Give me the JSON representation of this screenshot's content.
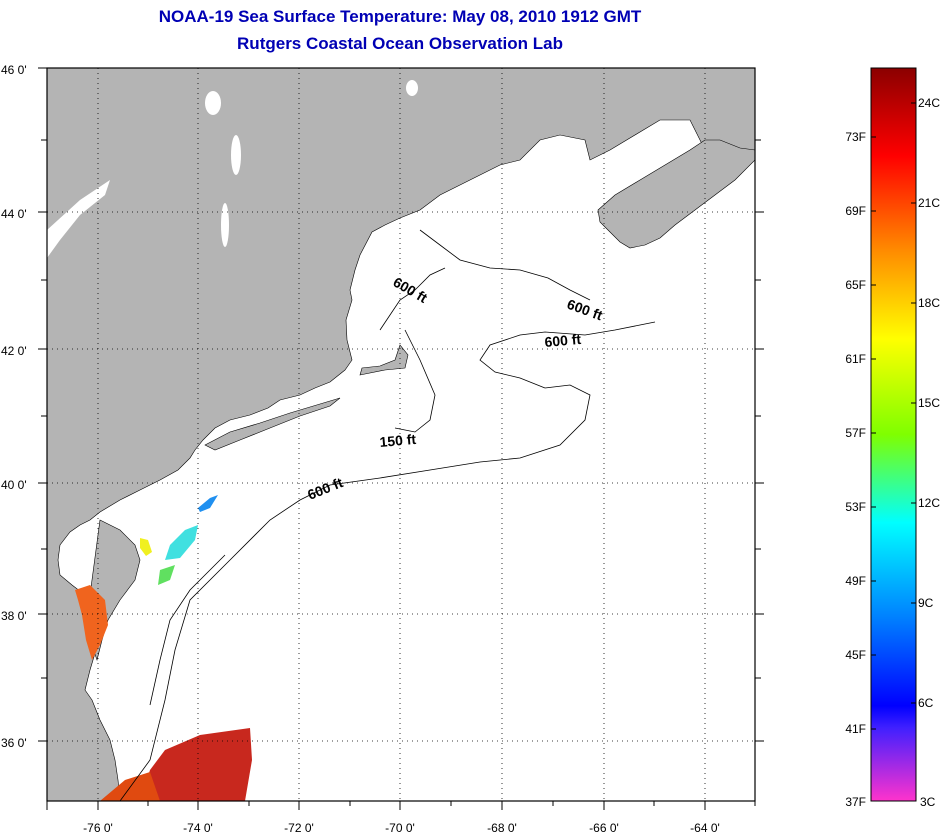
{
  "title": "NOAA-19 Sea Surface Temperature:  May 08, 2010 1912 GMT",
  "subtitle": "Rutgers Coastal Ocean Observation Lab",
  "map": {
    "lon_range": [
      -77,
      -63
    ],
    "lat_range": [
      35,
      46
    ],
    "lon_ticks": [
      "-76 0'",
      "-74 0'",
      "-72 0'",
      "-70 0'",
      "-68 0'",
      "-66 0'",
      "-64 0'"
    ],
    "lat_ticks": [
      "46 0'",
      "44 0'",
      "42 0'",
      "40 0'",
      "38 0'",
      "36 0'"
    ],
    "land_color": "#b4b4b4",
    "water_color": "#ffffff",
    "grid": "dotted",
    "contour_labels": [
      {
        "text": "600 ft",
        "lon": -69.8,
        "lat": 42.6,
        "angle": 30
      },
      {
        "text": "600 ft",
        "lon": -66.5,
        "lat": 42.5,
        "angle": 20
      },
      {
        "text": "600 ft",
        "lon": -66.6,
        "lat": 42.1,
        "angle": -5
      },
      {
        "text": "150 ft",
        "lon": -70.1,
        "lat": 40.6,
        "angle": -5
      },
      {
        "text": "600 ft",
        "lon": -71.2,
        "lat": 39.9,
        "angle": -22
      }
    ]
  },
  "colorbar": {
    "fahrenheit_labels": [
      "73F",
      "69F",
      "65F",
      "61F",
      "57F",
      "53F",
      "49F",
      "45F",
      "41F",
      "37F"
    ],
    "celsius_labels": [
      "24C",
      "21C",
      "18C",
      "15C",
      "12C",
      "9C",
      "6C",
      "3C"
    ],
    "gradient_colors": [
      "#8b0000",
      "#ff0000",
      "#ff8c00",
      "#ffff00",
      "#7fff00",
      "#00ffff",
      "#0080ff",
      "#0000ff",
      "#8000ff",
      "#ff33cc"
    ]
  }
}
